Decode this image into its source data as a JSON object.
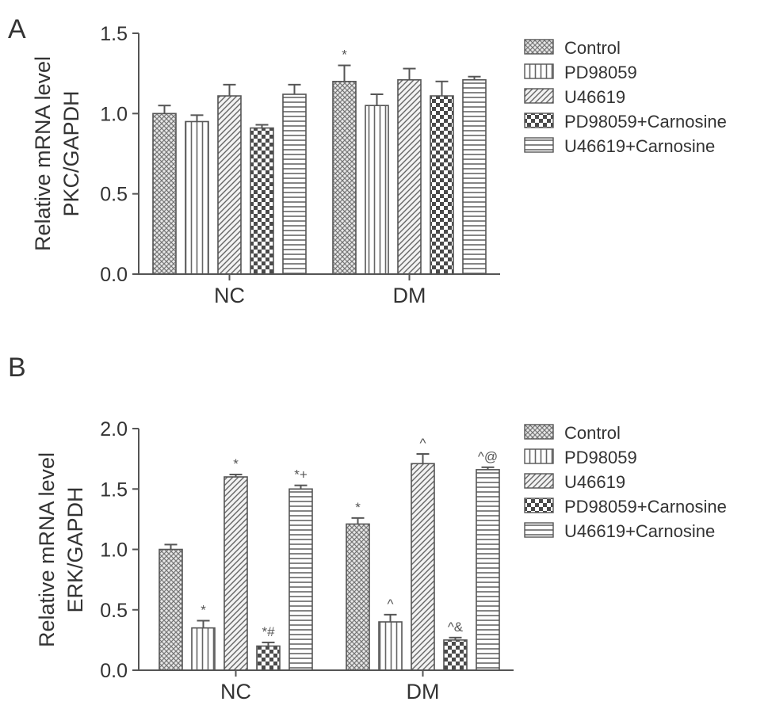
{
  "chart_data": [
    {
      "type": "bar",
      "panel": "A",
      "ylabel_line1": "Relative mRNA level",
      "ylabel_line2": "PKC/GAPDH",
      "ylim": [
        0,
        1.5
      ],
      "yticks": [
        "0.0",
        "0.5",
        "1.0",
        "1.5"
      ],
      "categories": [
        "NC",
        "DM"
      ],
      "series": [
        {
          "name": "Control",
          "values": [
            1.0,
            1.2
          ],
          "errors": [
            0.05,
            0.1
          ],
          "annotations": [
            "",
            "*"
          ]
        },
        {
          "name": "PD98059",
          "values": [
            0.95,
            1.05
          ],
          "errors": [
            0.04,
            0.07
          ],
          "annotations": [
            "",
            ""
          ]
        },
        {
          "name": "U46619",
          "values": [
            1.11,
            1.21
          ],
          "errors": [
            0.07,
            0.07
          ],
          "annotations": [
            "",
            ""
          ]
        },
        {
          "name": "PD98059+Carnosine",
          "values": [
            0.91,
            1.11
          ],
          "errors": [
            0.02,
            0.09
          ],
          "annotations": [
            "",
            ""
          ]
        },
        {
          "name": "U46619+Carnosine",
          "values": [
            1.12,
            1.21
          ],
          "errors": [
            0.06,
            0.02
          ],
          "annotations": [
            "",
            ""
          ]
        }
      ],
      "grid": false,
      "legend": "right"
    },
    {
      "type": "bar",
      "panel": "B",
      "ylabel_line1": "Relative mRNA level",
      "ylabel_line2": "ERK/GAPDH",
      "ylim": [
        0,
        2.0
      ],
      "yticks": [
        "0.0",
        "0.5",
        "1.0",
        "1.5",
        "2.0"
      ],
      "categories": [
        "NC",
        "DM"
      ],
      "series": [
        {
          "name": "Control",
          "values": [
            1.0,
            1.21
          ],
          "errors": [
            0.04,
            0.05
          ],
          "annotations": [
            "",
            "*"
          ]
        },
        {
          "name": "PD98059",
          "values": [
            0.35,
            0.4
          ],
          "errors": [
            0.06,
            0.06
          ],
          "annotations": [
            "*",
            "^"
          ]
        },
        {
          "name": "U46619",
          "values": [
            1.6,
            1.71
          ],
          "errors": [
            0.02,
            0.08
          ],
          "annotations": [
            "*",
            "^"
          ]
        },
        {
          "name": "PD98059+Carnosine",
          "values": [
            0.2,
            0.25
          ],
          "errors": [
            0.03,
            0.02
          ],
          "annotations": [
            "*#",
            "^&"
          ]
        },
        {
          "name": "U46619+Carnosine",
          "values": [
            1.5,
            1.66
          ],
          "errors": [
            0.03,
            0.02
          ],
          "annotations": [
            "*+",
            "^@"
          ]
        }
      ],
      "grid": false,
      "legend": "right"
    }
  ],
  "patterns": [
    "dense-crosshatch",
    "vertical-lines",
    "diagonal-lines",
    "checkerboard",
    "horizontal-lines"
  ],
  "colors": {
    "bar_fill": "#ffffff",
    "bar_stroke": "#555555",
    "hatch": "#666666",
    "axis": "#555555",
    "text": "#333333"
  }
}
